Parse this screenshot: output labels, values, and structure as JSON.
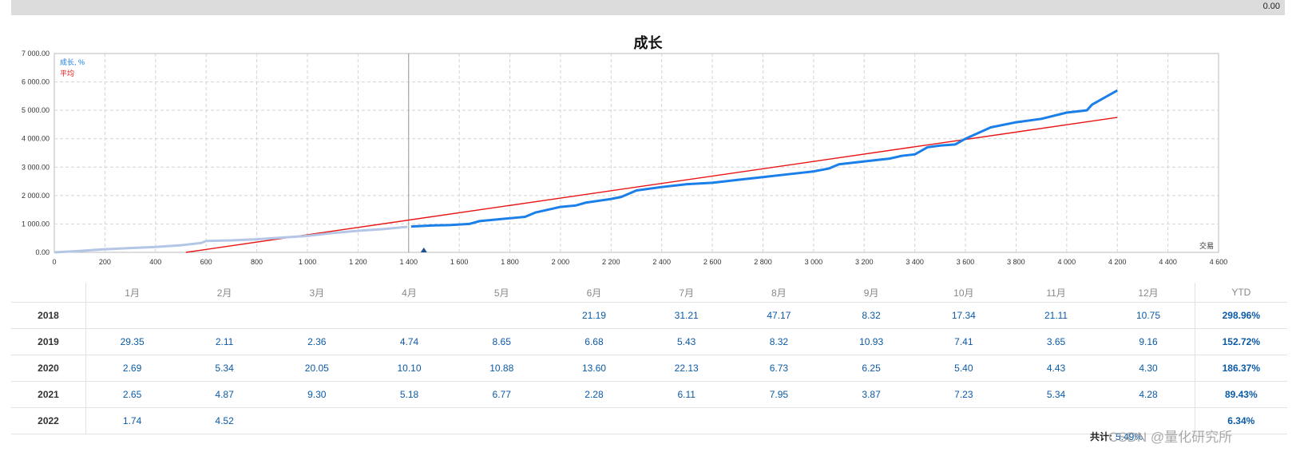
{
  "top_value": "0.00",
  "chart_data": {
    "type": "line",
    "title": "成长",
    "x_end_label": "交易",
    "xlim": [
      0,
      4600
    ],
    "ylim": [
      0,
      7000
    ],
    "x_ticks": [
      0,
      200,
      400,
      600,
      800,
      1000,
      1200,
      1400,
      1600,
      1800,
      2000,
      2200,
      2400,
      2600,
      2800,
      3000,
      3200,
      3400,
      3600,
      3800,
      4000,
      4200,
      4400,
      4600
    ],
    "x_tick_labels": [
      "0",
      "200",
      "400",
      "600",
      "800",
      "1 000",
      "1 200",
      "1 400",
      "1 600",
      "1 800",
      "2 000",
      "2 200",
      "2 400",
      "2 600",
      "2 800",
      "3 000",
      "3 200",
      "3 400",
      "3 600",
      "3 800",
      "4 000",
      "4 200",
      "4 400",
      "4 600"
    ],
    "y_ticks": [
      0,
      1000,
      2000,
      3000,
      4000,
      5000,
      6000,
      7000
    ],
    "y_tick_labels": [
      "0.00",
      "1 000.00",
      "2 000.00",
      "3 000.00",
      "4 000.00",
      "5 000.00",
      "6 000.00",
      "7 000.00"
    ],
    "grid": true,
    "legend": "top-left",
    "marker_line_x": 1400,
    "marker_triangle_x": 1460,
    "series": [
      {
        "name": "成长, %",
        "color": "#1a7fe8",
        "faded_until_x": 1400,
        "x": [
          0,
          100,
          200,
          300,
          400,
          500,
          580,
          600,
          700,
          800,
          900,
          1000,
          1100,
          1200,
          1300,
          1395,
          1410,
          1500,
          1560,
          1640,
          1680,
          1800,
          1860,
          1900,
          2000,
          2060,
          2100,
          2200,
          2240,
          2300,
          2400,
          2500,
          2600,
          2700,
          2800,
          2900,
          3000,
          3060,
          3100,
          3200,
          3300,
          3350,
          3400,
          3450,
          3500,
          3560,
          3600,
          3700,
          3800,
          3900,
          4000,
          4080,
          4100,
          4200
        ],
        "values": [
          0,
          50,
          110,
          150,
          190,
          250,
          330,
          400,
          420,
          460,
          520,
          580,
          680,
          760,
          820,
          900,
          910,
          950,
          960,
          1000,
          1100,
          1200,
          1250,
          1400,
          1600,
          1650,
          1750,
          1880,
          1950,
          2180,
          2300,
          2400,
          2450,
          2550,
          2650,
          2750,
          2850,
          2950,
          3100,
          3200,
          3300,
          3400,
          3450,
          3700,
          3760,
          3800,
          4000,
          4400,
          4580,
          4700,
          4920,
          5000,
          5200,
          5700
        ]
      },
      {
        "name": "平均",
        "color": "#e81414",
        "x": [
          520,
          4200
        ],
        "values": [
          0,
          4750
        ]
      }
    ]
  },
  "table": {
    "months": [
      "1月",
      "2月",
      "3月",
      "4月",
      "5月",
      "6月",
      "7月",
      "8月",
      "9月",
      "10月",
      "11月",
      "12月"
    ],
    "ytd_header": "YTD",
    "rows": [
      {
        "year": "2018",
        "values": [
          "",
          "",
          "",
          "",
          "",
          "21.19",
          "31.21",
          "47.17",
          "8.32",
          "17.34",
          "21.11",
          "10.75"
        ],
        "ytd": "298.96%"
      },
      {
        "year": "2019",
        "values": [
          "29.35",
          "2.11",
          "2.36",
          "4.74",
          "8.65",
          "6.68",
          "5.43",
          "8.32",
          "10.93",
          "7.41",
          "3.65",
          "9.16"
        ],
        "ytd": "152.72%"
      },
      {
        "year": "2020",
        "values": [
          "2.69",
          "5.34",
          "20.05",
          "10.10",
          "10.88",
          "13.60",
          "22.13",
          "6.73",
          "6.25",
          "5.40",
          "4.43",
          "4.30"
        ],
        "ytd": "186.37%"
      },
      {
        "year": "2021",
        "values": [
          "2.65",
          "4.87",
          "9.30",
          "5.18",
          "6.77",
          "2.28",
          "6.11",
          "7.95",
          "3.87",
          "7.23",
          "5.34",
          "4.28"
        ],
        "ytd": "89.43%"
      },
      {
        "year": "2022",
        "values": [
          "1.74",
          "4.52",
          "",
          "",
          "",
          "",
          "",
          "",
          "",
          "",
          "",
          ""
        ],
        "ytd": "6.34%"
      }
    ]
  },
  "total": {
    "label": "共计:",
    "value": "5.49%"
  },
  "watermark": "CSDN @量化研究所"
}
